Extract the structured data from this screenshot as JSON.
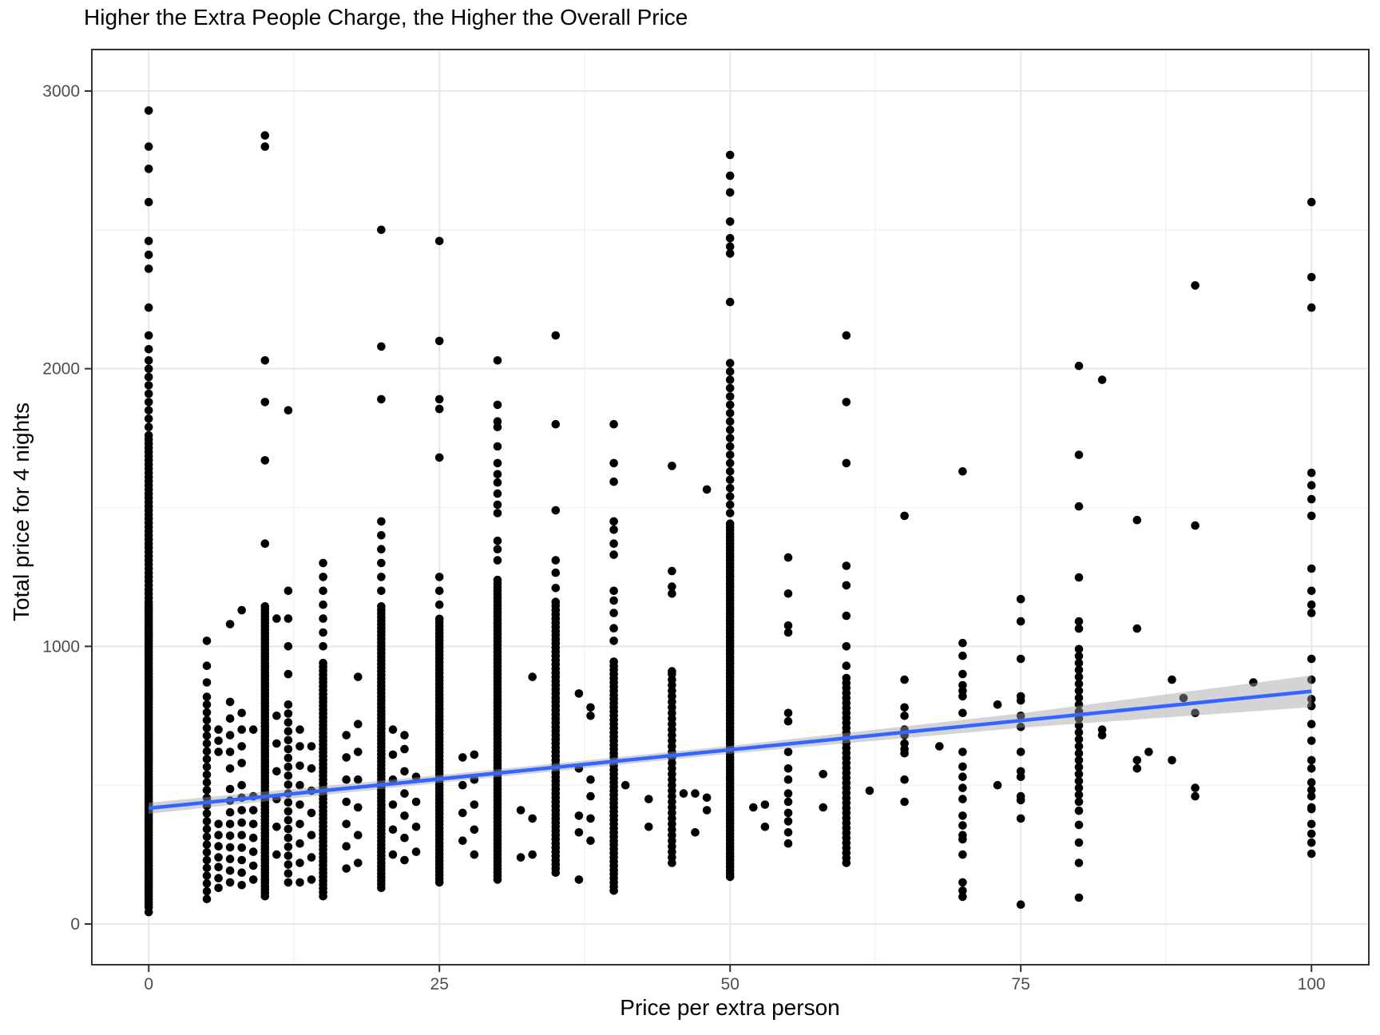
{
  "chart_data": {
    "type": "scatter",
    "title": "Higher the Extra People Charge, the Higher the Overall Price",
    "xlabel": "Price per extra person",
    "ylabel": "Total price for 4 nights",
    "xlim": [
      -5,
      105
    ],
    "ylim": [
      -150,
      3150
    ],
    "x_ticks": [
      0,
      25,
      50,
      75,
      100
    ],
    "x_tick_labels": [
      "0",
      "25",
      "50",
      "75",
      "100"
    ],
    "y_ticks": [
      0,
      1000,
      2000,
      3000
    ],
    "y_tick_labels": [
      "0",
      "1000",
      "2000",
      "3000"
    ],
    "x_minor": [
      12.5,
      37.5,
      62.5,
      87.5
    ],
    "y_minor": [
      500,
      1500,
      2500
    ],
    "grid": true,
    "legend": "none",
    "point_color": "#000000",
    "colors": {
      "trend_blue": "#3366FF",
      "ribbon_gray": "rgba(160,160,160,0.45)",
      "grid_major": "#e8e8e8",
      "grid_minor": "#f3f3f3",
      "panel_border": "#333333",
      "tick_mark": "#333333",
      "tick_label": "#4d4d4d",
      "title_color": "#000000"
    },
    "trend": {
      "type": "lm",
      "x": [
        0,
        100
      ],
      "y": [
        417,
        838
      ],
      "band_x": [
        0,
        25,
        50,
        75,
        100
      ],
      "band_halfwidth": [
        20,
        14,
        14,
        26,
        57
      ]
    },
    "columns": [
      {
        "x": 0,
        "dense": [
          [
            60,
            1150,
            10
          ],
          [
            1160,
            1745,
            15
          ],
          [
            1760,
            2000,
            30
          ]
        ],
        "points": [
          2030,
          2070,
          2120,
          2220,
          2360,
          2410,
          2460,
          2600,
          2720,
          2800,
          2930,
          43
        ]
      },
      {
        "x": 5,
        "dense": [
          [
            90,
            830,
            28
          ]
        ],
        "points": [
          870,
          930,
          1020
        ]
      },
      {
        "x": 6,
        "points": [
          130,
          165,
          205,
          240,
          280,
          320,
          360,
          620,
          660,
          700
        ]
      },
      {
        "x": 7,
        "dense": [
          [
            150,
            520,
            42
          ]
        ],
        "points": [
          560,
          620,
          680,
          740,
          800,
          1080
        ]
      },
      {
        "x": 8,
        "dense": [
          [
            140,
            520,
            45
          ]
        ],
        "points": [
          580,
          640,
          700,
          760,
          1130
        ]
      },
      {
        "x": 9,
        "points": [
          160,
          210,
          260,
          310,
          360,
          410,
          460,
          700
        ]
      },
      {
        "x": 10,
        "dense": [
          [
            100,
            1150,
            12
          ]
        ],
        "points": [
          1370,
          1670,
          1880,
          2030,
          2800,
          2840
        ]
      },
      {
        "x": 11,
        "points": [
          250,
          350,
          450,
          550,
          650,
          750,
          1100
        ]
      },
      {
        "x": 12,
        "dense": [
          [
            150,
            800,
            32
          ]
        ],
        "points": [
          900,
          1000,
          1100,
          1200,
          1850
        ]
      },
      {
        "x": 13,
        "points": [
          150,
          220,
          290,
          360,
          430,
          500,
          570,
          640,
          700
        ]
      },
      {
        "x": 14,
        "points": [
          160,
          240,
          320,
          400,
          480,
          560,
          640
        ]
      },
      {
        "x": 15,
        "dense": [
          [
            100,
            950,
            14
          ]
        ],
        "points": [
          1000,
          1050,
          1100,
          1150,
          1200,
          1250,
          1300
        ]
      },
      {
        "x": 17,
        "points": [
          200,
          280,
          360,
          440,
          520,
          600,
          680
        ]
      },
      {
        "x": 18,
        "points": [
          220,
          320,
          420,
          520,
          620,
          720,
          890
        ]
      },
      {
        "x": 20,
        "dense": [
          [
            130,
            1150,
            13
          ]
        ],
        "points": [
          1200,
          1250,
          1300,
          1350,
          1400,
          1450,
          1890,
          2080,
          2500
        ]
      },
      {
        "x": 21,
        "points": [
          250,
          340,
          430,
          520,
          610,
          700
        ]
      },
      {
        "x": 22,
        "points": [
          230,
          310,
          390,
          470,
          550,
          630,
          680
        ]
      },
      {
        "x": 23,
        "points": [
          260,
          350,
          440,
          530
        ]
      },
      {
        "x": 25,
        "dense": [
          [
            150,
            1100,
            13
          ]
        ],
        "points": [
          1150,
          1200,
          1250,
          1680,
          1855,
          1890,
          2100,
          2460
        ]
      },
      {
        "x": 27,
        "points": [
          300,
          400,
          500,
          600
        ]
      },
      {
        "x": 28,
        "points": [
          250,
          340,
          430,
          520,
          610
        ]
      },
      {
        "x": 30,
        "dense": [
          [
            160,
            1250,
            13
          ]
        ],
        "points": [
          1310,
          1350,
          1380,
          1480,
          1510,
          1550,
          1590,
          1620,
          1660,
          1720,
          1790,
          1810,
          1870,
          2030
        ]
      },
      {
        "x": 32,
        "points": [
          240,
          410
        ]
      },
      {
        "x": 33,
        "points": [
          250,
          380,
          890
        ]
      },
      {
        "x": 35,
        "dense": [
          [
            185,
            1170,
            15
          ]
        ],
        "points": [
          1210,
          1265,
          1310,
          1490,
          1800,
          2120
        ]
      },
      {
        "x": 37,
        "points": [
          160,
          330,
          390,
          560,
          830
        ]
      },
      {
        "x": 38,
        "points": [
          300,
          380,
          460,
          520,
          750,
          780
        ]
      },
      {
        "x": 40,
        "dense": [
          [
            120,
            950,
            15
          ]
        ],
        "points": [
          1020,
          1065,
          1120,
          1165,
          1200,
          1330,
          1370,
          1420,
          1450,
          1593,
          1660,
          1800
        ]
      },
      {
        "x": 41,
        "points": [
          500
        ]
      },
      {
        "x": 43,
        "points": [
          350,
          450
        ]
      },
      {
        "x": 45,
        "dense": [
          [
            220,
            900,
            20
          ]
        ],
        "points": [
          910,
          1190,
          1215,
          1271,
          1650
        ]
      },
      {
        "x": 46,
        "points": [
          470
        ]
      },
      {
        "x": 47,
        "points": [
          330,
          470
        ]
      },
      {
        "x": 48,
        "points": [
          410,
          455,
          1565
        ]
      },
      {
        "x": 50,
        "dense": [
          [
            170,
            1450,
            12
          ],
          [
            1480,
            2030,
            30
          ]
        ],
        "points": [
          2240,
          2415,
          2440,
          2470,
          2530,
          2635,
          2695,
          2770
        ]
      },
      {
        "x": 52,
        "points": [
          420
        ]
      },
      {
        "x": 53,
        "points": [
          350,
          430
        ]
      },
      {
        "x": 55,
        "points": [
          290,
          330,
          370,
          400,
          440,
          470,
          520,
          560,
          620,
          730,
          760,
          1050,
          1075,
          1190,
          1320
        ]
      },
      {
        "x": 58,
        "points": [
          420,
          540
        ]
      },
      {
        "x": 60,
        "dense": [
          [
            220,
            900,
            18
          ]
        ],
        "points": [
          930,
          1000,
          1110,
          1220,
          1290,
          1660,
          1880,
          2120
        ]
      },
      {
        "x": 62,
        "points": [
          480
        ]
      },
      {
        "x": 65,
        "points": [
          440,
          520,
          615,
          630,
          650,
          680,
          700,
          750,
          780,
          880,
          1470
        ]
      },
      {
        "x": 68,
        "points": [
          640
        ]
      },
      {
        "x": 70,
        "points": [
          98,
          120,
          150,
          250,
          305,
          320,
          355,
          390,
          450,
          490,
          530,
          567,
          620,
          760,
          820,
          840,
          860,
          900,
          966,
          1012,
          1630
        ]
      },
      {
        "x": 73,
        "points": [
          500,
          790
        ]
      },
      {
        "x": 75,
        "points": [
          70,
          380,
          446,
          460,
          530,
          550,
          620,
          710,
          750,
          805,
          820,
          955,
          1090,
          1170
        ]
      },
      {
        "x": 80,
        "dense": [
          [
            440,
            1010,
            25
          ]
        ],
        "points": [
          95,
          220,
          293,
          357,
          408,
          1064,
          1090,
          1248,
          1504,
          1690,
          2010
        ]
      },
      {
        "x": 82,
        "points": [
          680,
          700,
          1960
        ]
      },
      {
        "x": 85,
        "points": [
          560,
          590,
          1064,
          1455
        ]
      },
      {
        "x": 86,
        "points": [
          620
        ]
      },
      {
        "x": 88,
        "points": [
          590,
          880
        ]
      },
      {
        "x": 89,
        "points": [
          814
        ]
      },
      {
        "x": 90,
        "points": [
          460,
          490,
          760,
          1435,
          2300
        ]
      },
      {
        "x": 95,
        "points": [
          870
        ]
      },
      {
        "x": 100,
        "points": [
          253,
          293,
          325,
          360,
          414,
          420,
          460,
          483,
          510,
          560,
          590,
          660,
          720,
          785,
          810,
          880,
          955,
          1120,
          1150,
          1200,
          1280,
          1470,
          1530,
          1580,
          1625,
          2220,
          2330,
          2600
        ]
      }
    ]
  }
}
